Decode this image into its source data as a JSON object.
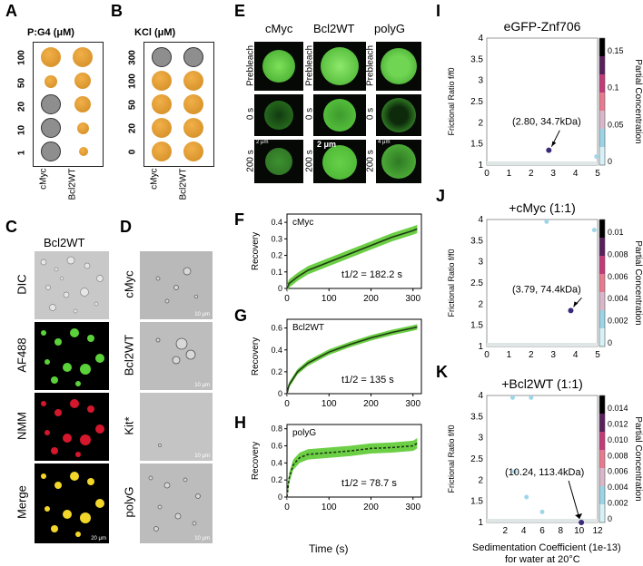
{
  "panels": {
    "a": "A",
    "b": "B",
    "c": "C",
    "d": "D",
    "e": "E",
    "f": "F",
    "g": "G",
    "h": "H",
    "i": "I",
    "j": "J",
    "k": "K"
  },
  "panel_a": {
    "title": "P:G4 (μM)",
    "rows": [
      "100",
      "50",
      "20",
      "10",
      "1"
    ],
    "cols": [
      "cMyc",
      "Bcl2WT"
    ],
    "condensate_color": "#e09a2c",
    "clear_color": "#9c9c9c"
  },
  "panel_b": {
    "title": "KCl (μM)",
    "rows": [
      "300",
      "100",
      "50",
      "20",
      "0"
    ],
    "cols": [
      "cMyc",
      "Bcl2WT"
    ]
  },
  "panel_c": {
    "title": "Bcl2WT",
    "rows": [
      "DIC",
      "AF488",
      "NMM",
      "Merge"
    ],
    "scale": "20 μm"
  },
  "panel_d": {
    "rows": [
      "cMyc",
      "Bcl2WT",
      "Kit*",
      "polyG"
    ],
    "scale": "10 μm"
  },
  "panel_e": {
    "cols": [
      "cMyc",
      "Bcl2WT",
      "polyG"
    ],
    "rows": [
      "Prebleach",
      "0 s",
      "200 s"
    ],
    "scales": [
      "2 μm",
      "2 μm",
      "4 μm"
    ]
  },
  "frap": {
    "ylabel": "Recovery",
    "xlabel": "Time (s)",
    "xticks": [
      "0",
      "100",
      "200",
      "300"
    ],
    "plots": [
      {
        "name": "cMyc",
        "t_half": "t1/2 = 182.2 s",
        "yticks": [
          "0",
          "0.1",
          "0.2",
          "0.3",
          "0.4"
        ]
      },
      {
        "name": "Bcl2WT",
        "t_half": "t1/2 = 135 s",
        "yticks": [
          "0",
          "0.2",
          "0.4",
          "0.6"
        ]
      },
      {
        "name": "polyG",
        "t_half": "t1/2 = 78.7 s",
        "yticks": [
          "0",
          "0.2",
          "0.4",
          "0.6",
          "0.8"
        ]
      }
    ]
  },
  "auc": {
    "ylabel": "Frictional Ratio f/f0",
    "xlabel": "Sedimentation Coefficient (1e-13)",
    "xlabel2": "for water at 20°C",
    "cbar_label": "Partial Concentration",
    "plots": [
      {
        "title": "eGFP-Znf706",
        "annot": "(2.80, 34.7kDa)",
        "xticks": [
          "0",
          "1",
          "2",
          "3",
          "4",
          "5"
        ],
        "cbar_ticks": [
          "0.15",
          "0.1",
          "0.05",
          "0"
        ]
      },
      {
        "title": "+cMyc (1:1)",
        "annot": "(3.79, 74.4kDa)",
        "xticks": [
          "0",
          "1",
          "2",
          "3",
          "4",
          "5"
        ],
        "cbar_ticks": [
          "0.01",
          "0.008",
          "0.006",
          "0.004",
          "0.002",
          "0"
        ]
      },
      {
        "title": "+Bcl2WT (1:1)",
        "annot": "(10.24, 113.4kDa)",
        "xticks": [
          "2",
          "4",
          "6",
          "8",
          "10",
          "12"
        ],
        "cbar_ticks": [
          "0.014",
          "0.012",
          "0.010",
          "0.008",
          "0.006",
          "0.004",
          "0.002",
          "0"
        ]
      }
    ],
    "yticks": [
      "1",
      "1.5",
      "2",
      "2.5",
      "3",
      "3.5",
      "4"
    ]
  },
  "chart_data": [
    {
      "type": "line",
      "title": "cMyc",
      "xlabel": "Time (s)",
      "ylabel": "Recovery",
      "x": [
        0,
        5,
        25,
        50,
        100,
        150,
        200,
        250,
        300,
        310
      ],
      "y": [
        0.0,
        0.03,
        0.07,
        0.11,
        0.16,
        0.21,
        0.26,
        0.31,
        0.35,
        0.36
      ],
      "xlim": [
        0,
        320
      ],
      "ylim": [
        0,
        0.45
      ]
    },
    {
      "type": "line",
      "title": "Bcl2WT",
      "xlabel": "Time (s)",
      "ylabel": "Recovery",
      "x": [
        0,
        5,
        25,
        50,
        100,
        150,
        200,
        250,
        300,
        310
      ],
      "y": [
        0.0,
        0.08,
        0.2,
        0.28,
        0.38,
        0.45,
        0.51,
        0.56,
        0.6,
        0.61
      ],
      "xlim": [
        0,
        320
      ],
      "ylim": [
        0,
        0.68
      ]
    },
    {
      "type": "line",
      "title": "polyG",
      "xlabel": "Time (s)",
      "ylabel": "Recovery",
      "x": [
        0,
        5,
        15,
        30,
        50,
        100,
        150,
        200,
        250,
        300,
        310
      ],
      "y": [
        0.0,
        0.22,
        0.38,
        0.46,
        0.5,
        0.52,
        0.54,
        0.57,
        0.58,
        0.6,
        0.63
      ],
      "xlim": [
        0,
        320
      ],
      "ylim": [
        0,
        0.85
      ]
    },
    {
      "type": "scatter",
      "title": "eGFP-Znf706",
      "xlabel": "Sedimentation Coefficient (1e-13)",
      "ylabel": "Frictional Ratio f/f0",
      "x": [
        2.8,
        4.95
      ],
      "y": [
        1.35,
        1.2
      ],
      "xlim": [
        0,
        5
      ],
      "ylim": [
        1,
        4
      ]
    },
    {
      "type": "scatter",
      "title": "+cMyc (1:1)",
      "xlabel": "Sedimentation Coefficient (1e-13)",
      "ylabel": "Frictional Ratio f/f0",
      "x": [
        3.79,
        2.7,
        4.85
      ],
      "y": [
        1.85,
        3.95,
        3.75
      ],
      "xlim": [
        0,
        5
      ],
      "ylim": [
        1,
        4
      ]
    },
    {
      "type": "scatter",
      "title": "+Bcl2WT (1:1)",
      "xlabel": "Sedimentation Coefficient (1e-13)",
      "ylabel": "Frictional Ratio f/f0",
      "x": [
        10.24,
        3.0,
        4.3,
        6.0,
        2.8,
        4.8
      ],
      "y": [
        1.0,
        2.2,
        1.6,
        1.25,
        3.95,
        3.95
      ],
      "xlim": [
        0,
        12
      ],
      "ylim": [
        1,
        4
      ]
    }
  ]
}
